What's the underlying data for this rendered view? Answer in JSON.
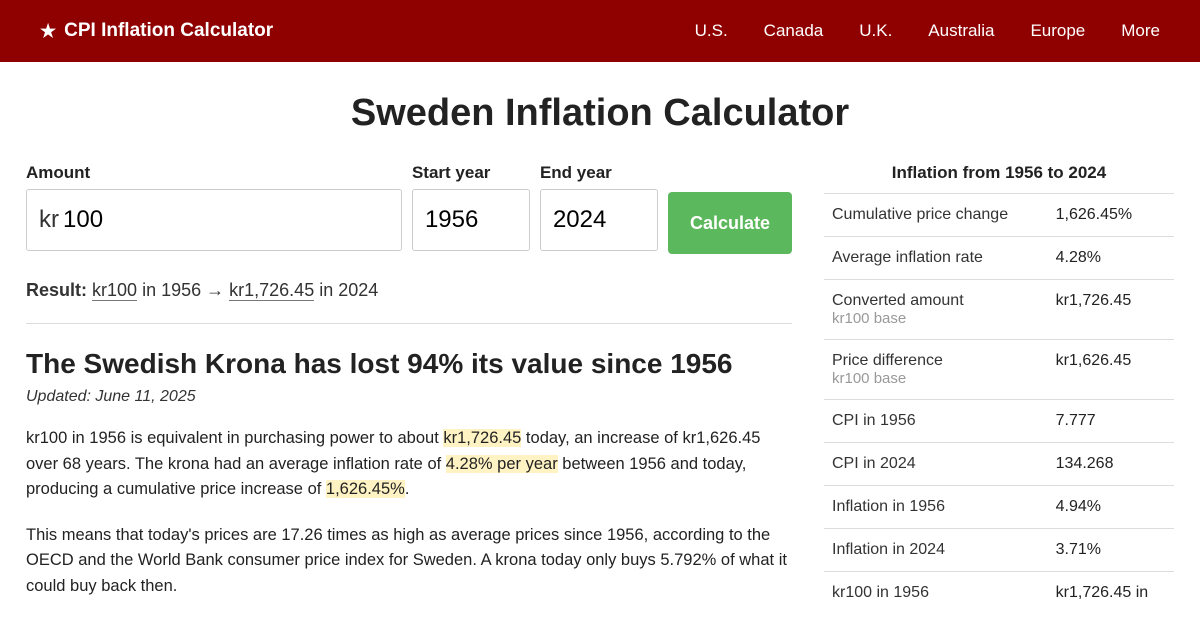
{
  "header": {
    "logo_text": "CPI Inflation Calculator",
    "nav": [
      "U.S.",
      "Canada",
      "U.K.",
      "Australia",
      "Europe",
      "More"
    ]
  },
  "page_title": "Sweden Inflation Calculator",
  "form": {
    "amount_label": "Amount",
    "currency_symbol": "kr",
    "amount_value": "100",
    "start_label": "Start year",
    "start_value": "1956",
    "end_label": "End year",
    "end_value": "2024",
    "calculate": "Calculate"
  },
  "result": {
    "prefix": "Result:",
    "from_amt": "kr100",
    "from_txt": " in 1956 → ",
    "to_amt": "kr1,726.45",
    "to_txt": " in 2024"
  },
  "headline": "The Swedish Krona has lost 94% its value since 1956",
  "updated": "Updated: June 11, 2025",
  "para1": {
    "a": "kr100 in 1956 is equivalent in purchasing power to about ",
    "b": "kr1,726.45",
    "c": " today, an increase of kr1,626.45 over 68 years. The krona had an average inflation rate of ",
    "d": "4.28% per year",
    "e": " between 1956 and today, producing a cumulative price increase of ",
    "f": "1,626.45%",
    "g": "."
  },
  "para2": "This means that today's prices are 17.26 times as high as average prices since 1956, according to the OECD and the World Bank consumer price index for Sweden. A krona today only buys 5.792% of what it could buy back then.",
  "stats": {
    "title": "Inflation from 1956 to 2024",
    "rows": [
      {
        "label": "Cumulative price change",
        "sub": "",
        "value": "1,626.45%"
      },
      {
        "label": "Average inflation rate",
        "sub": "",
        "value": "4.28%"
      },
      {
        "label": "Converted amount",
        "sub": "kr100 base",
        "value": "kr1,726.45"
      },
      {
        "label": "Price difference",
        "sub": "kr100 base",
        "value": "kr1,626.45"
      },
      {
        "label": "CPI in 1956",
        "sub": "",
        "value": "7.777"
      },
      {
        "label": "CPI in 2024",
        "sub": "",
        "value": "134.268"
      },
      {
        "label": "Inflation in 1956",
        "sub": "",
        "value": "4.94%"
      },
      {
        "label": "Inflation in 2024",
        "sub": "",
        "value": "3.71%"
      },
      {
        "label": "kr100 in 1956",
        "sub": "",
        "value": "kr1,726.45 in"
      }
    ]
  }
}
